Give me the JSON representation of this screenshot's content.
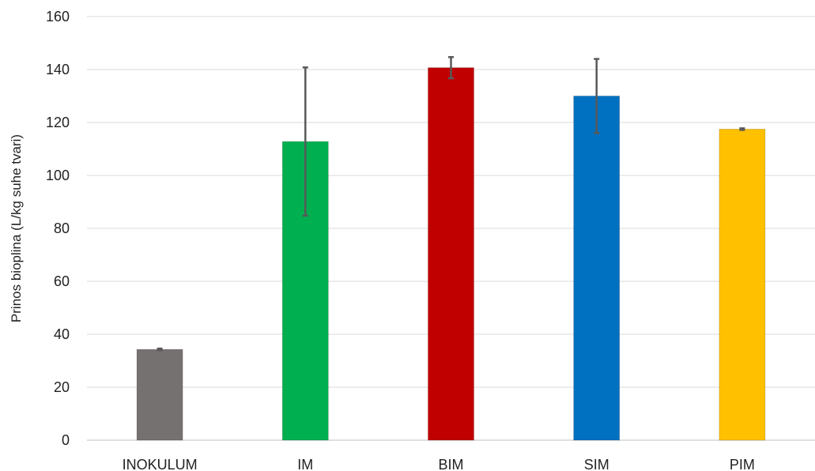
{
  "chart_data": {
    "type": "bar",
    "title": "",
    "xlabel": "",
    "ylabel": "Prinos bioplina (L/kg suhe tvari)",
    "ylim": [
      0,
      160
    ],
    "yticks": [
      0,
      20,
      40,
      60,
      80,
      100,
      120,
      140,
      160
    ],
    "grid": true,
    "legend": "none",
    "categories": [
      "INOKULUM",
      "IM",
      "BIM",
      "SIM",
      "PIM"
    ],
    "values": [
      34.3,
      112.8,
      140.7,
      130.0,
      117.5
    ],
    "error": [
      0.3,
      28.0,
      4.0,
      14.0,
      0.3
    ],
    "colors": [
      "#767171",
      "#00b050",
      "#c00000",
      "#0070c0",
      "#ffc000"
    ],
    "error_color": "#595959"
  }
}
